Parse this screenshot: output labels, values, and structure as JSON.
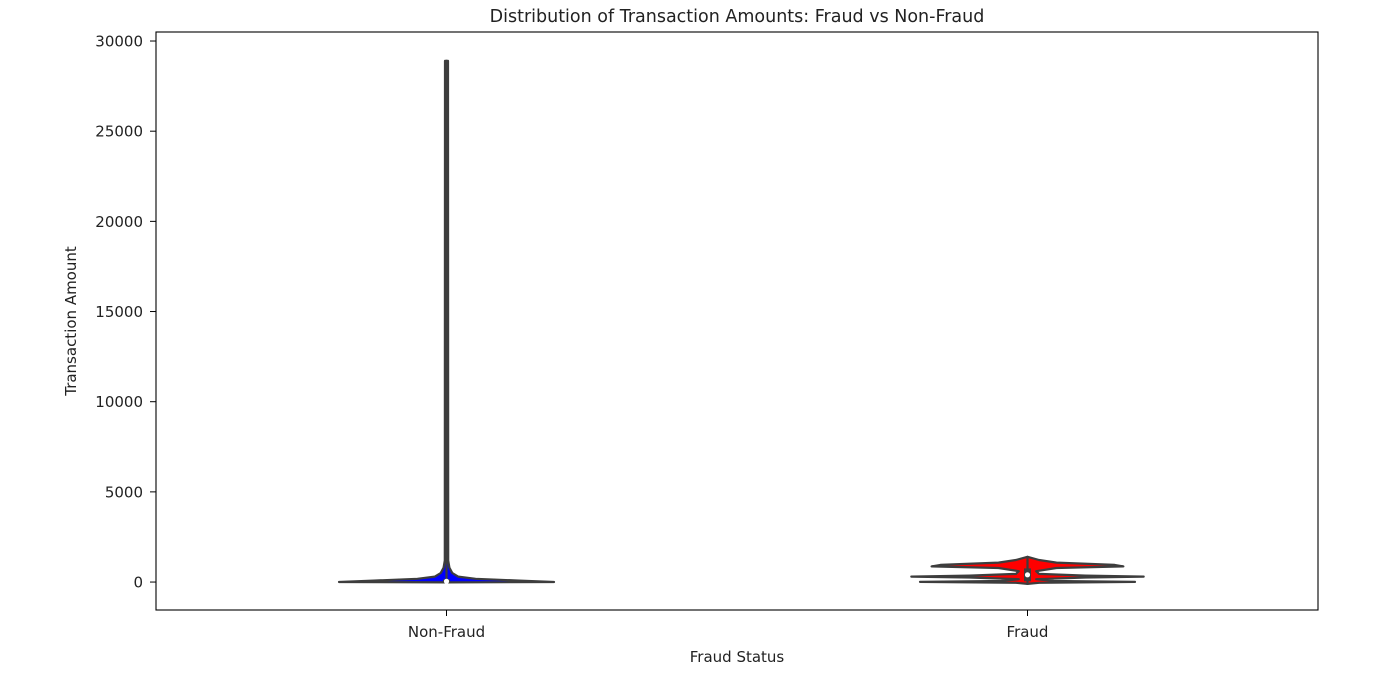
{
  "chart_data": {
    "type": "violin",
    "title": "Distribution of Transaction Amounts: Fraud vs Non-Fraud",
    "xlabel": "Fraud Status",
    "ylabel": "Transaction Amount",
    "categories": [
      "Non-Fraud",
      "Fraud"
    ],
    "ylim": [
      -1550,
      30500
    ],
    "y_ticks": [
      0,
      5000,
      10000,
      15000,
      20000,
      25000,
      30000
    ],
    "grid": false,
    "legend": "none",
    "series": [
      {
        "category": "Non-Fraud",
        "color": "#0000ff",
        "min": 0,
        "max": 28900,
        "q1": 10,
        "median": 40,
        "q3": 95,
        "density": [
          {
            "y": -20,
            "w": 0.0
          },
          {
            "y": 0,
            "w": 0.37
          },
          {
            "y": 80,
            "w": 0.25
          },
          {
            "y": 180,
            "w": 0.1
          },
          {
            "y": 300,
            "w": 0.04
          },
          {
            "y": 500,
            "w": 0.02
          },
          {
            "y": 800,
            "w": 0.01
          },
          {
            "y": 1200,
            "w": 0.006
          },
          {
            "y": 28900,
            "w": 0.005
          }
        ]
      },
      {
        "category": "Fraud",
        "color": "#ff0000",
        "min": -100,
        "max": 1400,
        "q1": 100,
        "median": 400,
        "q3": 700,
        "density": [
          {
            "y": -100,
            "w": 0.0
          },
          {
            "y": -40,
            "w": 0.04
          },
          {
            "y": 10,
            "w": 0.37
          },
          {
            "y": 60,
            "w": 0.09
          },
          {
            "y": 160,
            "w": 0.03
          },
          {
            "y": 250,
            "w": 0.2
          },
          {
            "y": 300,
            "w": 0.4
          },
          {
            "y": 360,
            "w": 0.2
          },
          {
            "y": 450,
            "w": 0.04
          },
          {
            "y": 600,
            "w": 0.03
          },
          {
            "y": 780,
            "w": 0.1
          },
          {
            "y": 870,
            "w": 0.33
          },
          {
            "y": 950,
            "w": 0.3
          },
          {
            "y": 1080,
            "w": 0.1
          },
          {
            "y": 1220,
            "w": 0.04
          },
          {
            "y": 1400,
            "w": 0.0
          }
        ]
      }
    ]
  }
}
